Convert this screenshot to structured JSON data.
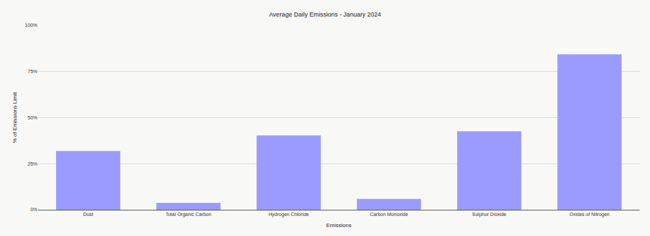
{
  "chart_data": {
    "type": "bar",
    "title": "Average Daily Emissions - January 2024",
    "x_label": "Emissions",
    "y_label": "% of Emissions Limit",
    "categories": [
      "Dust",
      "Total Organic Carbon",
      "Hydrogen Chloride",
      "Carbon Monoxide",
      "Sulphur Dioxide",
      "Oxides of Nitrogen"
    ],
    "values": [
      31.9,
      3.7,
      40.4,
      5.9,
      42.6,
      84.4
    ],
    "color": "#9b9bff",
    "ylim": [
      0,
      100
    ],
    "yticks": [
      {
        "value": 0,
        "label": "0%"
      },
      {
        "value": 25,
        "label": "25%"
      },
      {
        "value": 50,
        "label": "50%"
      },
      {
        "value": 75,
        "label": "75%"
      },
      {
        "value": 100,
        "label": "100%"
      }
    ],
    "grid": true
  }
}
